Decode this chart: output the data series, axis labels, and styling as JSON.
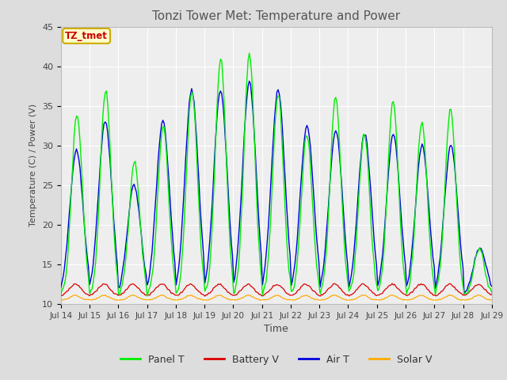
{
  "title": "Tonzi Tower Met: Temperature and Power",
  "xlabel": "Time",
  "ylabel": "Temperature (C) / Power (V)",
  "ylim": [
    10,
    45
  ],
  "xlim_days": 15,
  "tick_labels": [
    "Jul 14",
    "Jul 15",
    "Jul 16",
    "Jul 17",
    "Jul 18",
    "Jul 19",
    "Jul 20",
    "Jul 21",
    "Jul 22",
    "Jul 23",
    "Jul 24",
    "Jul 25",
    "Jul 26",
    "Jul 27",
    "Jul 28",
    "Jul 29"
  ],
  "yticks": [
    10,
    15,
    20,
    25,
    30,
    35,
    40,
    45
  ],
  "legend_labels": [
    "Panel T",
    "Battery V",
    "Air T",
    "Solar V"
  ],
  "legend_colors": [
    "#00ee00",
    "#dd0000",
    "#0000dd",
    "#ffaa00"
  ],
  "annotation_text": "TZ_tmet",
  "annotation_box_facecolor": "#ffffcc",
  "annotation_box_edgecolor": "#ccaa00",
  "annotation_text_color": "#cc0000",
  "fig_facecolor": "#dddddd",
  "ax_facecolor": "#eeeeee",
  "grid_color": "#ffffff",
  "title_color": "#555555",
  "title_fontsize": 11,
  "samples_per_day": 24
}
